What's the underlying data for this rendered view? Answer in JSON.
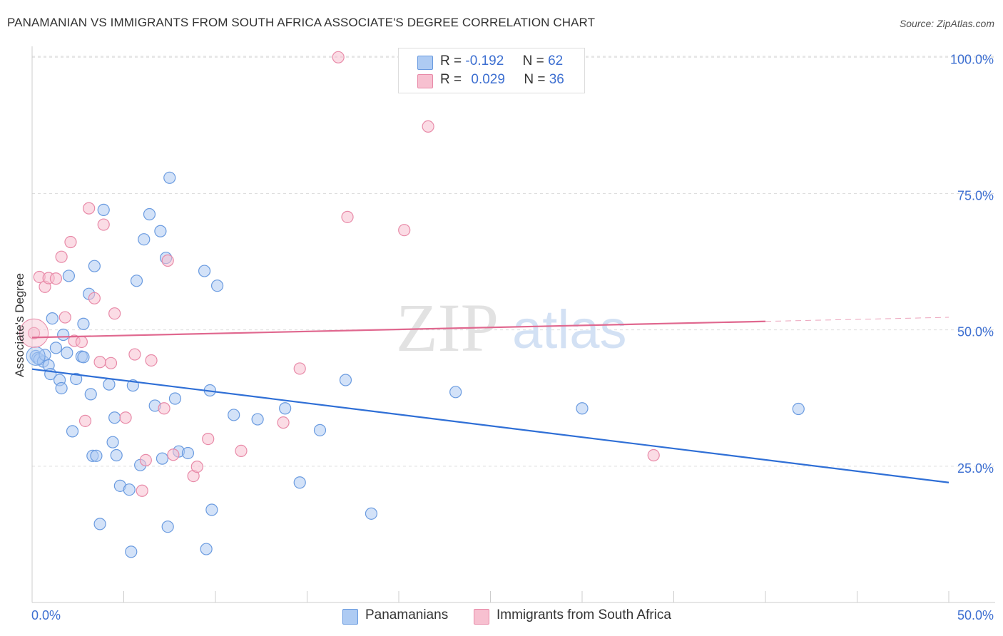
{
  "title": "PANAMANIAN VS IMMIGRANTS FROM SOUTH AFRICA ASSOCIATE'S DEGREE CORRELATION CHART",
  "source": "Source: ZipAtlas.com",
  "watermark": {
    "zip": "ZIP",
    "atlas": "atlas"
  },
  "legend_top": [
    {
      "r_label": "R =",
      "r_value": "-0.192",
      "n_label": "N =",
      "n_value": "62"
    },
    {
      "r_label": "R =",
      "r_value": "0.029",
      "n_label": "N =",
      "n_value": "36"
    }
  ],
  "colors": {
    "blue_fill": "#aecbf3",
    "blue_stroke": "#6a9be0",
    "blue_line": "#2f6fd6",
    "pink_fill": "#f7c0d0",
    "pink_stroke": "#e88aa8",
    "pink_line": "#e0688f",
    "axis_label": "#3d6fd1",
    "grid": "#dddddd"
  },
  "chart_data": {
    "type": "scatter",
    "title": "PANAMANIAN VS IMMIGRANTS FROM SOUTH AFRICA ASSOCIATE'S DEGREE CORRELATION CHART",
    "xlabel": "",
    "ylabel": "Associate's Degree",
    "xlim": [
      0,
      50
    ],
    "ylim": [
      0,
      102
    ],
    "x_tick_labels": [
      "0.0%",
      "50.0%"
    ],
    "y_ticks": [
      25,
      50,
      75,
      100
    ],
    "y_tick_labels": [
      "25.0%",
      "50.0%",
      "75.0%",
      "100.0%"
    ],
    "series": [
      {
        "name": "Panamanians",
        "color": "#aecbf3",
        "trend": {
          "x0": 0,
          "y0": 42.8,
          "x1": 50,
          "y1": 22.0,
          "dash_from": 50
        },
        "points": [
          [
            0.2,
            45.2
          ],
          [
            0.3,
            44.8
          ],
          [
            0.4,
            44.6
          ],
          [
            0.6,
            44.2
          ],
          [
            0.7,
            45.4
          ],
          [
            0.9,
            43.5
          ],
          [
            1.0,
            41.9
          ],
          [
            1.1,
            52.1
          ],
          [
            1.3,
            46.7
          ],
          [
            1.5,
            40.8
          ],
          [
            1.6,
            39.3
          ],
          [
            1.7,
            49.1
          ],
          [
            1.9,
            45.8
          ],
          [
            2.0,
            59.9
          ],
          [
            2.2,
            31.4
          ],
          [
            2.4,
            41.0
          ],
          [
            2.7,
            45.1
          ],
          [
            2.8,
            45.0
          ],
          [
            2.8,
            51.1
          ],
          [
            3.1,
            56.6
          ],
          [
            3.2,
            38.2
          ],
          [
            3.3,
            26.9
          ],
          [
            3.4,
            61.7
          ],
          [
            3.5,
            26.9
          ],
          [
            3.7,
            14.4
          ],
          [
            3.9,
            72.0
          ],
          [
            4.2,
            40.0
          ],
          [
            4.4,
            29.4
          ],
          [
            4.5,
            33.9
          ],
          [
            4.6,
            27.0
          ],
          [
            4.8,
            21.4
          ],
          [
            5.3,
            20.7
          ],
          [
            5.4,
            9.3
          ],
          [
            5.5,
            39.8
          ],
          [
            5.7,
            59.0
          ],
          [
            5.9,
            25.2
          ],
          [
            6.1,
            66.6
          ],
          [
            6.4,
            71.2
          ],
          [
            6.7,
            36.1
          ],
          [
            7.0,
            68.1
          ],
          [
            7.1,
            26.4
          ],
          [
            7.3,
            63.2
          ],
          [
            7.4,
            13.9
          ],
          [
            7.5,
            77.9
          ],
          [
            7.8,
            37.4
          ],
          [
            8.0,
            27.7
          ],
          [
            8.5,
            27.4
          ],
          [
            9.4,
            60.8
          ],
          [
            9.5,
            9.8
          ],
          [
            9.7,
            38.9
          ],
          [
            9.8,
            17.0
          ],
          [
            10.1,
            58.1
          ],
          [
            11.0,
            34.4
          ],
          [
            12.3,
            33.6
          ],
          [
            13.8,
            35.6
          ],
          [
            14.6,
            22.0
          ],
          [
            15.7,
            31.6
          ],
          [
            17.1,
            40.8
          ],
          [
            18.5,
            16.3
          ],
          [
            23.1,
            38.6
          ],
          [
            30.0,
            35.6
          ],
          [
            41.8,
            35.5
          ]
        ]
      },
      {
        "name": "Immigrants from South Africa",
        "color": "#f7c0d0",
        "trend": {
          "x0": 0,
          "y0": 48.6,
          "x1": 50,
          "y1": 52.3,
          "dash_from": 40
        },
        "points": [
          [
            0.1,
            49.4
          ],
          [
            0.4,
            59.7
          ],
          [
            0.7,
            57.9
          ],
          [
            0.9,
            59.5
          ],
          [
            1.3,
            59.4
          ],
          [
            1.6,
            63.4
          ],
          [
            1.8,
            52.3
          ],
          [
            2.1,
            66.1
          ],
          [
            2.3,
            48.0
          ],
          [
            2.7,
            47.8
          ],
          [
            2.9,
            33.3
          ],
          [
            3.1,
            72.3
          ],
          [
            3.4,
            55.8
          ],
          [
            3.7,
            44.1
          ],
          [
            3.9,
            69.3
          ],
          [
            4.3,
            43.9
          ],
          [
            4.5,
            53.0
          ],
          [
            5.1,
            33.9
          ],
          [
            5.6,
            45.5
          ],
          [
            6.0,
            20.5
          ],
          [
            6.2,
            26.1
          ],
          [
            6.5,
            44.4
          ],
          [
            7.2,
            35.6
          ],
          [
            7.4,
            62.7
          ],
          [
            7.7,
            27.1
          ],
          [
            8.8,
            23.2
          ],
          [
            9.0,
            24.9
          ],
          [
            9.6,
            30.0
          ],
          [
            11.4,
            27.8
          ],
          [
            13.7,
            33.0
          ],
          [
            14.6,
            42.9
          ],
          [
            16.7,
            100.0
          ],
          [
            17.2,
            70.7
          ],
          [
            20.3,
            68.3
          ],
          [
            21.6,
            87.3
          ],
          [
            33.9,
            27.0
          ]
        ]
      }
    ]
  },
  "bottom_legend": [
    "Panamanians",
    "Immigrants from South Africa"
  ]
}
